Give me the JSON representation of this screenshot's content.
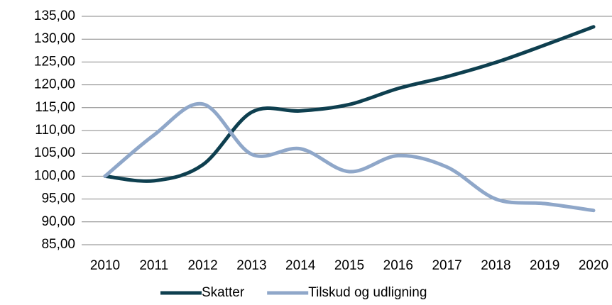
{
  "chart_data": {
    "type": "line",
    "categories": [
      "2010",
      "2011",
      "2012",
      "2013",
      "2014",
      "2015",
      "2016",
      "2017",
      "2018",
      "2019",
      "2020"
    ],
    "series": [
      {
        "name": "Skatter",
        "color": "#0e3f4f",
        "values": [
          100,
          99,
          102.5,
          114,
          114.3,
          115.7,
          119.2,
          121.8,
          124.9,
          128.7,
          132.7
        ]
      },
      {
        "name": "Tilskud og udligning",
        "color": "#8fa7c9",
        "values": [
          100,
          109,
          115.8,
          104.8,
          106,
          101,
          104.5,
          102,
          95,
          94,
          92.5
        ]
      }
    ],
    "ylim": [
      85,
      135
    ],
    "yticks": [
      {
        "value": 85,
        "label": "85,00"
      },
      {
        "value": 90,
        "label": "90,00"
      },
      {
        "value": 95,
        "label": "95,00"
      },
      {
        "value": 100,
        "label": "100,00"
      },
      {
        "value": 105,
        "label": "105,00"
      },
      {
        "value": 110,
        "label": "110,00"
      },
      {
        "value": 115,
        "label": "115,00"
      },
      {
        "value": 120,
        "label": "120,00"
      },
      {
        "value": 125,
        "label": "125,00"
      },
      {
        "value": 130,
        "label": "130,00"
      },
      {
        "value": 135,
        "label": "135,00"
      }
    ],
    "grid": true,
    "legend": "bottom"
  }
}
